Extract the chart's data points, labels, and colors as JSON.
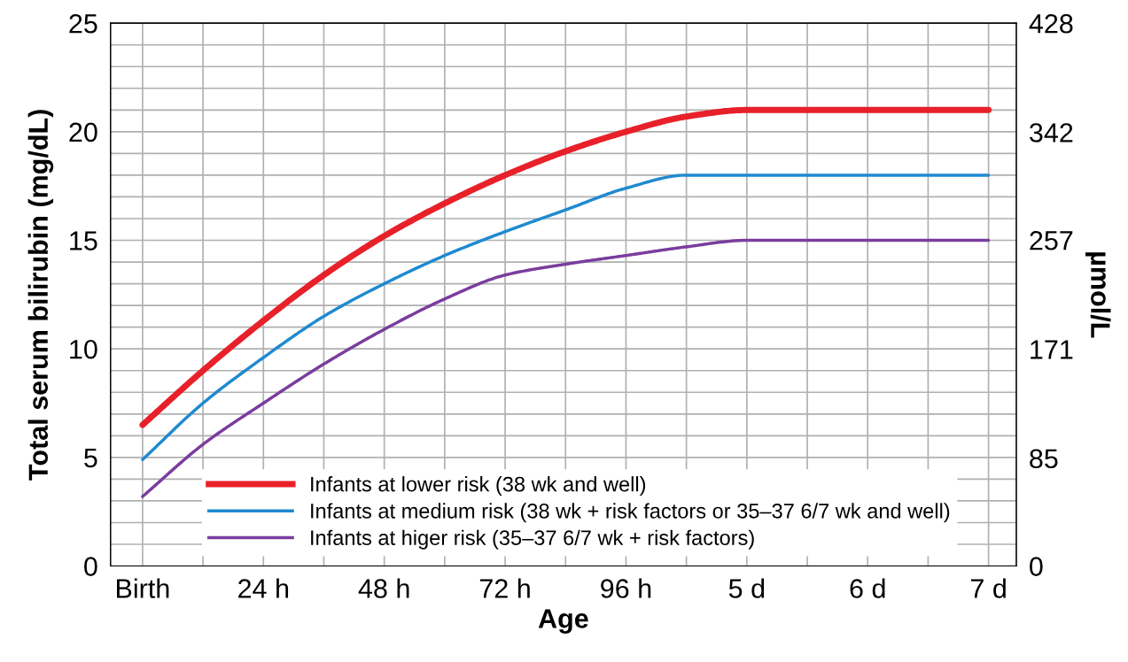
{
  "chart_data": {
    "type": "line",
    "xlabel": "Age",
    "ylabel": "Total serum bilirubin (mg/dL)",
    "y2label": "µmol/L",
    "ylim": [
      0,
      25
    ],
    "y2lim": [
      0,
      428
    ],
    "categories": [
      "Birth",
      null,
      "24 h",
      null,
      "48 h",
      null,
      "72 h",
      null,
      "96 h",
      null,
      "5 d",
      null,
      "6 d",
      null,
      "7 d"
    ],
    "yticks": [
      0,
      {
        "value": 1,
        "label": null
      },
      {
        "value": 2,
        "label": null
      },
      {
        "value": 3,
        "label": null
      },
      {
        "value": 4,
        "label": null
      },
      5,
      {
        "value": 6,
        "label": null
      },
      {
        "value": 7,
        "label": null
      },
      {
        "value": 8,
        "label": null
      },
      {
        "value": 9,
        "label": null
      },
      10,
      {
        "value": 11,
        "label": null
      },
      {
        "value": 12,
        "label": null
      },
      {
        "value": 13,
        "label": null
      },
      {
        "value": 14,
        "label": null
      },
      15,
      {
        "value": 16,
        "label": null
      },
      {
        "value": 17,
        "label": null
      },
      {
        "value": 18,
        "label": null
      },
      {
        "value": 19,
        "label": null
      },
      20,
      {
        "value": 21,
        "label": null
      },
      {
        "value": 22,
        "label": null
      },
      {
        "value": 23,
        "label": null
      },
      {
        "value": 24,
        "label": null
      },
      25
    ],
    "y2ticks": [
      0,
      85,
      171,
      257,
      342,
      428
    ],
    "series": [
      {
        "name": "Infants at lower risk (38 wk and well)",
        "color": "#e8202a",
        "values": [
          6.5,
          9.0,
          11.3,
          13.4,
          15.2,
          16.7,
          18.0,
          19.1,
          20.0,
          20.7,
          21.0,
          21.0,
          21.0,
          21.0,
          21.0
        ]
      },
      {
        "name": "Infants at medium risk (38 wk + risk factors or 35–37 6/7 wk and well)",
        "color": "#1f8ad0",
        "values": [
          4.9,
          7.5,
          9.6,
          11.5,
          13.0,
          14.3,
          15.4,
          16.4,
          17.4,
          18.0,
          18.0,
          18.0,
          18.0,
          18.0,
          18.0
        ]
      },
      {
        "name": "Infants at higer risk (35–37 6/7 wk + risk factors)",
        "color": "#7a3d9e",
        "values": [
          3.2,
          5.6,
          7.5,
          9.3,
          10.9,
          12.3,
          13.4,
          13.9,
          14.3,
          14.7,
          15.0,
          15.0,
          15.0,
          15.0,
          15.0
        ]
      }
    ],
    "grid": true,
    "legend": "bottom",
    "line_style": "solid"
  }
}
